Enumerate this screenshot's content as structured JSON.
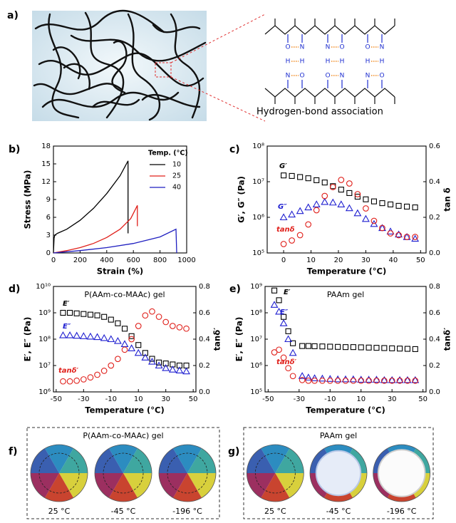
{
  "panel_labels": [
    "a)",
    "b)",
    "c)",
    "d)",
    "e)",
    "f)",
    "g)"
  ],
  "figure_a": {
    "caption": "Hydrogen-bond association",
    "atoms": [
      "O",
      "H",
      "N"
    ]
  },
  "chart_data": [
    {
      "type": "line",
      "xlabel": "Strain (%)",
      "ylabel": "Stress (MPa)",
      "legend_title": "Temp. (°C)",
      "legend": "upper right",
      "xlim": [
        0,
        1000
      ],
      "xticks": [
        0,
        200,
        400,
        600,
        800,
        1000
      ],
      "ylim": [
        0,
        18
      ],
      "yticks": [
        0,
        3,
        6,
        9,
        12,
        15,
        18
      ],
      "series": [
        {
          "name": "10",
          "color": "#000000",
          "x": [
            0,
            5,
            10,
            30,
            100,
            200,
            300,
            400,
            500,
            560,
            560
          ],
          "values": [
            0,
            2.5,
            3,
            3.3,
            4,
            5.5,
            7.5,
            10,
            13,
            15.5,
            3.3
          ]
        },
        {
          "name": "25",
          "color": "#e0201b",
          "x": [
            0,
            100,
            200,
            300,
            400,
            500,
            580,
            630,
            630
          ],
          "values": [
            0,
            0.4,
            0.9,
            1.6,
            2.6,
            4,
            5.8,
            8,
            4.5
          ]
        },
        {
          "name": "40",
          "color": "#1f1fc0",
          "x": [
            0,
            200,
            400,
            600,
            800,
            920,
            925
          ],
          "values": [
            0,
            0.4,
            0.9,
            1.6,
            2.7,
            4,
            0
          ]
        }
      ]
    },
    {
      "type": "scatter",
      "xlabel": "Temperature (°C)",
      "ylabel": "G′, G″ (Pa)",
      "y2label": "tan δ",
      "ylog": true,
      "xlim": [
        -6,
        52
      ],
      "xticks": [
        0,
        10,
        20,
        30,
        40,
        50
      ],
      "ylim": [
        100000,
        100000000
      ],
      "yticks": [
        {
          "value": 100000,
          "label": "10⁵"
        },
        {
          "value": 1000000,
          "label": "10⁶"
        },
        {
          "value": 10000000,
          "label": "10⁷"
        },
        {
          "value": 100000000,
          "label": "10⁸"
        }
      ],
      "y2lim": [
        0,
        0.6
      ],
      "y2ticks": [
        {
          "value": 0,
          "label": "0.0"
        },
        0.2,
        0.4,
        0.6
      ],
      "x": [
        0,
        3,
        6,
        9,
        12,
        15,
        18,
        21,
        24,
        27,
        30,
        33,
        36,
        39,
        42,
        45,
        48
      ],
      "series": [
        {
          "name": "G′",
          "color": "#000000",
          "marker": "square",
          "values": [
            15000000,
            14500000,
            13500000,
            12500000,
            11000000,
            9500000,
            7500000,
            6000000,
            4800000,
            3800000,
            3200000,
            2800000,
            2500000,
            2300000,
            2100000,
            2000000,
            1900000
          ]
        },
        {
          "name": "G″",
          "color": "#1f1fd0",
          "marker": "triangle",
          "values": [
            1000000,
            1200000,
            1500000,
            1900000,
            2300000,
            2700000,
            2600000,
            2300000,
            1800000,
            1300000,
            900000,
            650000,
            500000,
            400000,
            330000,
            280000,
            250000
          ]
        },
        {
          "name": "tanδ",
          "color": "#e0201b",
          "marker": "circle",
          "axis": "y2",
          "values": [
            0.05,
            0.07,
            0.1,
            0.16,
            0.24,
            0.32,
            0.37,
            0.41,
            0.39,
            0.33,
            0.25,
            0.18,
            0.14,
            0.11,
            0.1,
            0.09,
            0.09
          ]
        }
      ]
    },
    {
      "type": "scatter",
      "title": "P(AAm-co-MAAc) gel",
      "xlabel": "Temperature (°C)",
      "ylabel": "E′, E″ (Pa)",
      "y2label": "tanδ′",
      "ylog": true,
      "xlim": [
        -52,
        52
      ],
      "xticks": [
        -50,
        -30,
        -10,
        10,
        30,
        50
      ],
      "ylim": [
        1000000,
        10000000000
      ],
      "yticks": [
        {
          "value": 1000000,
          "label": "10⁶"
        },
        {
          "value": 10000000,
          "label": "10⁷"
        },
        {
          "value": 100000000,
          "label": "10⁸"
        },
        {
          "value": 1000000000,
          "label": "10⁹"
        },
        {
          "value": 10000000000,
          "label": "10¹⁰"
        }
      ],
      "y2lim": [
        0,
        0.8
      ],
      "y2ticks": [
        {
          "value": 0,
          "label": "0.0"
        },
        0.2,
        0.4,
        0.6,
        0.8
      ],
      "x": [
        -45,
        -40,
        -35,
        -30,
        -25,
        -20,
        -15,
        -10,
        -5,
        0,
        5,
        10,
        15,
        20,
        25,
        30,
        35,
        40,
        45
      ],
      "series": [
        {
          "name": "E′",
          "color": "#000000",
          "marker": "square",
          "values": [
            1000000000,
            1000000000,
            950000000,
            900000000,
            850000000,
            800000000,
            700000000,
            550000000,
            400000000,
            250000000,
            130000000,
            60000000,
            30000000,
            18000000,
            13000000,
            12000000,
            11000000,
            10000000,
            10000000
          ]
        },
        {
          "name": "E″",
          "color": "#1f1fd0",
          "marker": "triangle",
          "values": [
            140000000,
            140000000,
            135000000,
            130000000,
            125000000,
            120000000,
            110000000,
            100000000,
            85000000,
            65000000,
            45000000,
            30000000,
            20000000,
            14000000,
            10000000,
            8000000,
            7000000,
            6500000,
            6000000
          ]
        },
        {
          "name": "tanδ′",
          "color": "#e0201b",
          "marker": "circle",
          "axis": "y2",
          "values": [
            0.08,
            0.08,
            0.085,
            0.095,
            0.11,
            0.13,
            0.16,
            0.2,
            0.25,
            0.32,
            0.4,
            0.5,
            0.58,
            0.61,
            0.57,
            0.53,
            0.5,
            0.49,
            0.48
          ]
        }
      ]
    },
    {
      "type": "scatter",
      "title": "PAAm gel",
      "xlabel": "Temperature (°C)",
      "ylabel": "E′, E″ (Pa)",
      "y2label": "tanδ′",
      "ylog": true,
      "xlim": [
        -52,
        52
      ],
      "xticks": [
        -50,
        -30,
        -10,
        10,
        30,
        50
      ],
      "ylim": [
        100000,
        1000000000
      ],
      "yticks": [
        {
          "value": 100000,
          "label": "10⁵"
        },
        {
          "value": 1000000,
          "label": "10⁶"
        },
        {
          "value": 10000000,
          "label": "10⁷"
        },
        {
          "value": 100000000,
          "label": "10⁸"
        },
        {
          "value": 1000000000,
          "label": "10⁹"
        }
      ],
      "y2lim": [
        0,
        0.8
      ],
      "y2ticks": [
        {
          "value": 0,
          "label": "0.0"
        },
        0.2,
        0.4,
        0.6,
        0.8
      ],
      "x": [
        -46,
        -43,
        -40,
        -37,
        -34,
        -28,
        -24,
        -20,
        -15,
        -10,
        -5,
        0,
        5,
        10,
        15,
        20,
        25,
        30,
        35,
        40,
        45
      ],
      "series": [
        {
          "name": "E′",
          "color": "#000000",
          "marker": "square",
          "values": [
            700000000,
            300000000,
            70000000,
            20000000,
            7000000,
            5500000,
            5500000,
            5400000,
            5300000,
            5200000,
            5100000,
            5000000,
            5000000,
            4900000,
            4800000,
            4700000,
            4600000,
            4500000,
            4400000,
            4300000,
            4200000
          ]
        },
        {
          "name": "E″",
          "color": "#1f1fd0",
          "marker": "triangle",
          "values": [
            200000000,
            110000000,
            40000000,
            10000000,
            3000000,
            400000,
            350000,
            330000,
            320000,
            310000,
            300000,
            300000,
            300000,
            290000,
            290000,
            290000,
            280000,
            280000,
            280000,
            280000,
            280000
          ]
        },
        {
          "name": "tanδ′",
          "color": "#e0201b",
          "marker": "circle",
          "axis": "y2",
          "values": [
            0.3,
            0.32,
            0.26,
            0.18,
            0.12,
            0.09,
            0.085,
            0.085,
            0.085,
            0.085,
            0.085,
            0.085,
            0.085,
            0.085,
            0.085,
            0.085,
            0.085,
            0.085,
            0.085,
            0.085,
            0.085
          ]
        }
      ]
    }
  ],
  "photos": [
    {
      "title": "P(AAm-co-MAAc) gel",
      "labels": [
        "25 °C",
        "-45 °C",
        "-196 °C"
      ]
    },
    {
      "title": "PAAm gel",
      "labels": [
        "25 °C",
        "-45 °C",
        "-196 °C"
      ]
    }
  ]
}
